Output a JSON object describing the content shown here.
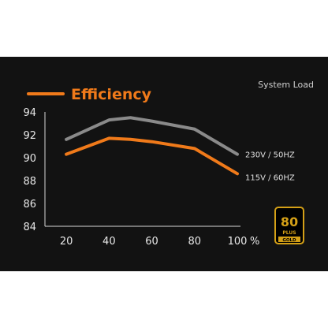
{
  "chart_data": {
    "type": "line",
    "title": "Efficiency",
    "xlabel": "System Load",
    "ylabel": "",
    "x": [
      10,
      20,
      40,
      50,
      60,
      80,
      100
    ],
    "x_ticks": [
      20,
      40,
      60,
      80,
      100
    ],
    "x_tick_labels": [
      "20",
      "40",
      "60",
      "80",
      "100"
    ],
    "x_unit": "%",
    "y_ticks": [
      84,
      86,
      88,
      90,
      92,
      94
    ],
    "xlim": [
      10,
      100
    ],
    "ylim": [
      84,
      94
    ],
    "grid": false,
    "series": [
      {
        "name": "230V / 50HZ",
        "color": "#8a8a8a",
        "values": [
          null,
          91.6,
          93.3,
          93.5,
          93.2,
          92.5,
          90.3
        ]
      },
      {
        "name": "115V / 60HZ",
        "color": "#f07a1a",
        "values": [
          null,
          90.3,
          91.7,
          91.6,
          91.4,
          90.8,
          88.6
        ]
      }
    ]
  },
  "badge": {
    "number": "80",
    "word": "PLUS",
    "tier": "GOLD",
    "color": "#d4a017"
  }
}
